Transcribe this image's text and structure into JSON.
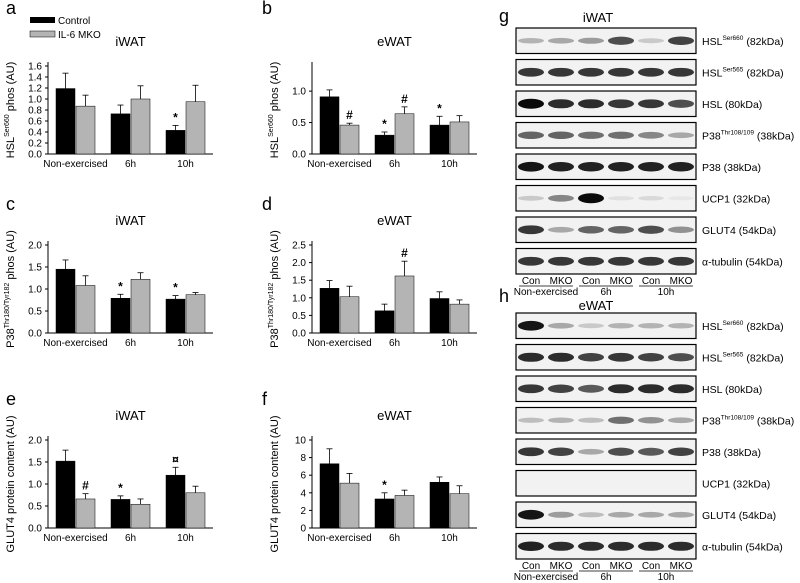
{
  "legend": {
    "control_label": "Control",
    "mko_label": "IL-6 MKO",
    "control_color": "#000000",
    "mko_color": "#b4b4b4"
  },
  "chart_data": [
    {
      "panel": "a",
      "type": "bar",
      "title": "iWAT",
      "ylabel_pre": "HSL",
      "ylabel_sup": "Ser660",
      "ylabel_post": " phos (AU)",
      "categories": [
        "Non-exercised",
        "6h",
        "10h"
      ],
      "ylim": [
        0,
        1.6
      ],
      "yticks": [
        "0.0",
        "0.2",
        "0.4",
        "0.6",
        "0.8",
        "1.0",
        "1.2",
        "1.4",
        "1.6"
      ],
      "series": [
        {
          "name": "Control",
          "values": [
            1.19,
            0.73,
            0.43
          ],
          "errors": [
            0.28,
            0.16,
            0.09
          ]
        },
        {
          "name": "IL-6 MKO",
          "values": [
            0.87,
            1.0,
            0.95
          ],
          "errors": [
            0.2,
            0.24,
            0.3
          ]
        }
      ],
      "annotations": [
        {
          "series": 0,
          "index": 2,
          "text": "*"
        }
      ]
    },
    {
      "panel": "b",
      "type": "bar",
      "title": "eWAT",
      "ylabel_pre": "HSL",
      "ylabel_sup": "Ser660",
      "ylabel_post": " phos (AU)",
      "categories": [
        "Non-exercised",
        "6h",
        "10h"
      ],
      "ylim": [
        0,
        1.4
      ],
      "yticks": [
        "0.0",
        "0.5",
        "1.0"
      ],
      "series": [
        {
          "name": "Control",
          "values": [
            0.91,
            0.3,
            0.46
          ],
          "errors": [
            0.11,
            0.05,
            0.14
          ]
        },
        {
          "name": "IL-6 MKO",
          "values": [
            0.46,
            0.64,
            0.51
          ],
          "errors": [
            0.03,
            0.11,
            0.1
          ]
        }
      ],
      "annotations": [
        {
          "series": 1,
          "index": 0,
          "text": "#"
        },
        {
          "series": 0,
          "index": 1,
          "text": "*"
        },
        {
          "series": 1,
          "index": 1,
          "text": "#"
        },
        {
          "series": 0,
          "index": 2,
          "text": "*"
        }
      ]
    },
    {
      "panel": "c",
      "type": "bar",
      "title": "iWAT",
      "ylabel_pre": "P38",
      "ylabel_sup": "Thr180/Tyr182",
      "ylabel_post": " phos (AU)",
      "categories": [
        "Non-exercised",
        "6h",
        "10h"
      ],
      "ylim": [
        0,
        2.0
      ],
      "yticks": [
        "0.0",
        "0.5",
        "1.0",
        "1.5",
        "2.0"
      ],
      "series": [
        {
          "name": "Control",
          "values": [
            1.45,
            0.79,
            0.77
          ],
          "errors": [
            0.21,
            0.09,
            0.08
          ]
        },
        {
          "name": "IL-6 MKO",
          "values": [
            1.08,
            1.22,
            0.87
          ],
          "errors": [
            0.22,
            0.15,
            0.05
          ]
        }
      ],
      "annotations": [
        {
          "series": 0,
          "index": 1,
          "text": "*"
        },
        {
          "series": 0,
          "index": 2,
          "text": "*"
        }
      ]
    },
    {
      "panel": "d",
      "type": "bar",
      "title": "eWAT",
      "ylabel_pre": "P38",
      "ylabel_sup": "Thr180/Tyr182",
      "ylabel_post": " phos (AU)",
      "categories": [
        "Non-exercised",
        "6h",
        "10h"
      ],
      "ylim": [
        0,
        2.5
      ],
      "yticks": [
        "0.0",
        "0.5",
        "1.0",
        "1.5",
        "2.0",
        "2.5"
      ],
      "series": [
        {
          "name": "Control",
          "values": [
            1.27,
            0.63,
            0.98
          ],
          "errors": [
            0.22,
            0.19,
            0.19
          ]
        },
        {
          "name": "IL-6 MKO",
          "values": [
            1.03,
            1.62,
            0.82
          ],
          "errors": [
            0.3,
            0.42,
            0.12
          ]
        }
      ],
      "annotations": [
        {
          "series": 1,
          "index": 1,
          "text": "#"
        }
      ]
    },
    {
      "panel": "e",
      "type": "bar",
      "title": "iWAT",
      "ylabel_pre": "GLUT4 protein content (AU)",
      "ylabel_sup": "",
      "ylabel_post": "",
      "categories": [
        "Non-exercised",
        "6h",
        "10h"
      ],
      "ylim": [
        0,
        2.0
      ],
      "yticks": [
        "0.0",
        "0.5",
        "1.0",
        "1.5",
        "2.0"
      ],
      "series": [
        {
          "name": "Control",
          "values": [
            1.52,
            0.65,
            1.2
          ],
          "errors": [
            0.25,
            0.08,
            0.18
          ]
        },
        {
          "name": "IL-6 MKO",
          "values": [
            0.66,
            0.54,
            0.8
          ],
          "errors": [
            0.12,
            0.12,
            0.15
          ]
        }
      ],
      "annotations": [
        {
          "series": 1,
          "index": 0,
          "text": "#"
        },
        {
          "series": 0,
          "index": 1,
          "text": "*"
        },
        {
          "series": 0,
          "index": 2,
          "text": "¤"
        }
      ]
    },
    {
      "panel": "f",
      "type": "bar",
      "title": "eWAT",
      "ylabel_pre": "GLUT4 protein content (AU)",
      "ylabel_sup": "",
      "ylabel_post": "",
      "categories": [
        "Non-exercised",
        "6h",
        "10h"
      ],
      "ylim": [
        0,
        10
      ],
      "yticks": [
        "0",
        "2",
        "4",
        "6",
        "8",
        "10"
      ],
      "series": [
        {
          "name": "Control",
          "values": [
            7.3,
            3.3,
            5.2
          ],
          "errors": [
            1.7,
            0.7,
            0.6
          ]
        },
        {
          "name": "IL-6 MKO",
          "values": [
            5.1,
            3.7,
            3.9
          ],
          "errors": [
            1.1,
            0.6,
            0.9
          ]
        }
      ],
      "annotations": [
        {
          "series": 0,
          "index": 1,
          "text": "*"
        }
      ]
    }
  ],
  "blots": {
    "g": {
      "panel": "g",
      "title": "iWAT",
      "rows": [
        {
          "label": "HSL",
          "sup": "Ser660",
          "kda": " (82kDa)",
          "intensity": [
            0.25,
            0.3,
            0.35,
            0.7,
            0.15,
            0.75
          ]
        },
        {
          "label": "HSL",
          "sup": "Ser565",
          "kda": " (82kDa)",
          "intensity": [
            0.8,
            0.8,
            0.8,
            0.8,
            0.8,
            0.8
          ]
        },
        {
          "label": "HSL",
          "sup": "",
          "kda": " (80kDa)",
          "intensity": [
            1.0,
            0.85,
            0.85,
            0.8,
            0.8,
            0.7
          ]
        },
        {
          "label": "P38",
          "sup": "Thr108/109",
          "kda": " (38kDa)",
          "intensity": [
            0.6,
            0.6,
            0.55,
            0.55,
            0.45,
            0.3
          ]
        },
        {
          "label": "P38",
          "sup": "",
          "kda": " (38kDa)",
          "intensity": [
            0.95,
            0.9,
            0.9,
            0.9,
            0.9,
            0.9
          ]
        },
        {
          "label": "UCP1",
          "sup": "",
          "kda": " (32kDa)",
          "intensity": [
            0.15,
            0.45,
            1.0,
            0.05,
            0.08,
            0.02
          ]
        },
        {
          "label": "GLUT4",
          "sup": "",
          "kda": " (54kDa)",
          "intensity": [
            0.8,
            0.3,
            0.6,
            0.6,
            0.7,
            0.4
          ]
        },
        {
          "label": "α-tubulin",
          "sup": "",
          "kda": " (54kDa)",
          "intensity": [
            0.8,
            0.8,
            0.8,
            0.8,
            0.8,
            0.8
          ]
        }
      ],
      "lanes": [
        "Con",
        "MKO",
        "Con",
        "MKO",
        "Con",
        "MKO"
      ],
      "groups": [
        "Non-exercised",
        "6h",
        "10h"
      ]
    },
    "h": {
      "panel": "h",
      "title": "eWAT",
      "rows": [
        {
          "label": "HSL",
          "sup": "Ser660",
          "kda": " (82kDa)",
          "intensity": [
            0.95,
            0.3,
            0.15,
            0.25,
            0.25,
            0.25
          ]
        },
        {
          "label": "HSL",
          "sup": "Ser565",
          "kda": " (82kDa)",
          "intensity": [
            0.85,
            0.85,
            0.75,
            0.8,
            0.75,
            0.7
          ]
        },
        {
          "label": "HSL",
          "sup": "",
          "kda": " (80kDa)",
          "intensity": [
            0.8,
            0.75,
            0.65,
            0.85,
            0.85,
            0.85
          ]
        },
        {
          "label": "P38",
          "sup": "Thr108/109",
          "kda": " (38kDa)",
          "intensity": [
            0.2,
            0.25,
            0.2,
            0.55,
            0.4,
            0.3
          ]
        },
        {
          "label": "P38",
          "sup": "",
          "kda": " (38kDa)",
          "intensity": [
            0.8,
            0.75,
            0.3,
            0.7,
            0.65,
            0.75
          ]
        },
        {
          "label": "UCP1",
          "sup": "",
          "kda": " (32kDa)",
          "intensity": [
            0,
            0,
            0,
            0,
            0,
            0
          ]
        },
        {
          "label": "GLUT4",
          "sup": "",
          "kda": " (54kDa)",
          "intensity": [
            0.95,
            0.35,
            0.2,
            0.3,
            0.3,
            0.3
          ]
        },
        {
          "label": "α-tubulin",
          "sup": "",
          "kda": " (54kDa)",
          "intensity": [
            0.9,
            0.85,
            0.85,
            0.85,
            0.85,
            0.85
          ]
        }
      ],
      "lanes": [
        "Con",
        "MKO",
        "Con",
        "MKO",
        "Con",
        "MKO"
      ],
      "groups": [
        "Non-exercised",
        "6h",
        "10h"
      ]
    }
  }
}
